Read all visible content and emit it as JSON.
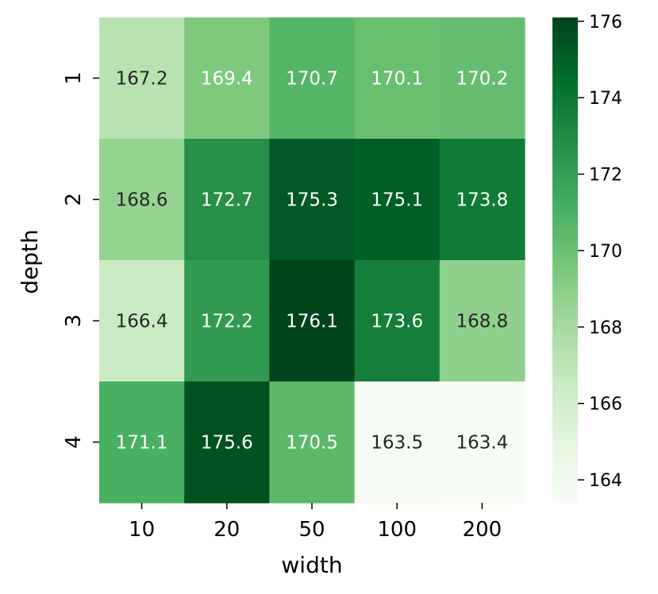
{
  "chart_data": {
    "type": "heatmap",
    "xlabel": "width",
    "ylabel": "depth",
    "x_categories": [
      "10",
      "20",
      "50",
      "100",
      "200"
    ],
    "y_categories": [
      "1",
      "2",
      "3",
      "4"
    ],
    "values": [
      [
        167.2,
        169.4,
        170.7,
        170.1,
        170.2
      ],
      [
        168.6,
        172.7,
        175.3,
        175.1,
        173.8
      ],
      [
        166.4,
        172.2,
        176.1,
        173.6,
        168.8
      ],
      [
        171.1,
        175.6,
        170.5,
        163.5,
        163.4
      ]
    ],
    "annotated": true,
    "colormap": "Greens",
    "color_range": [
      163.4,
      176.1
    ],
    "colorbar_ticks": [
      "164",
      "166",
      "168",
      "170",
      "172",
      "174",
      "176"
    ]
  }
}
